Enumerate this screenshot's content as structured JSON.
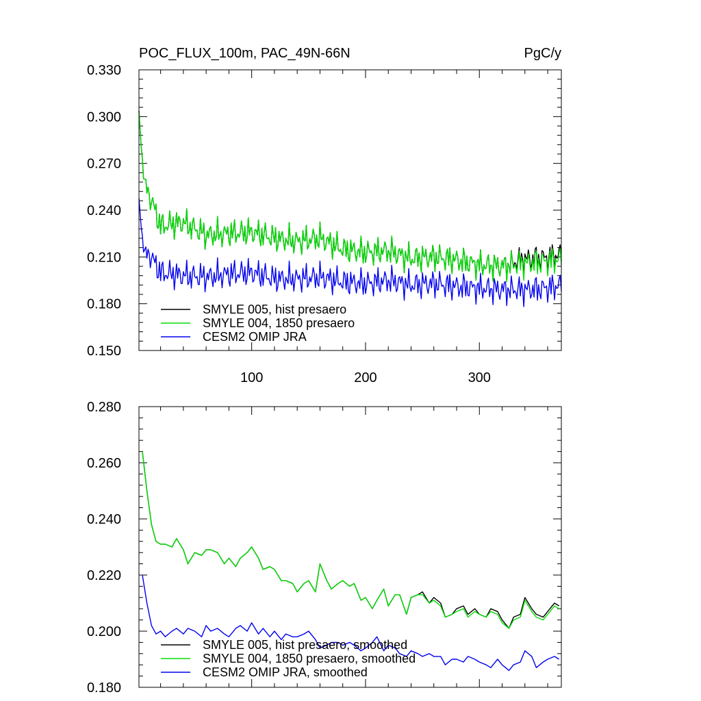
{
  "chart_data": [
    {
      "type": "line",
      "title": "POC_FLUX_100m, PAC_49N-66N",
      "units": "PgC/y",
      "xlim": [
        1,
        372
      ],
      "ylim": [
        0.15,
        0.33
      ],
      "xticks": [
        100,
        200,
        300
      ],
      "xtick_labels": [
        "100",
        "200",
        "300"
      ],
      "yticks": [
        0.15,
        0.18,
        0.21,
        0.24,
        0.27,
        0.3,
        0.33
      ],
      "ytick_labels": [
        "0.150",
        "0.180",
        "0.210",
        "0.240",
        "0.270",
        "0.300",
        "0.330"
      ],
      "legend_position": "bottom-left",
      "series": [
        {
          "name": "SMYLE 005, hist presaero",
          "color": "#000000",
          "x": [
            1,
            5,
            10,
            20,
            40,
            60,
            80,
            100,
            120,
            140,
            160,
            180,
            200,
            220,
            240,
            260,
            280,
            300,
            320,
            340,
            360,
            372
          ],
          "values": [
            0.302,
            0.262,
            0.25,
            0.23,
            0.232,
            0.224,
            0.225,
            0.226,
            0.222,
            0.22,
            0.222,
            0.215,
            0.213,
            0.214,
            0.209,
            0.21,
            0.208,
            0.205,
            0.204,
            0.207,
            0.208,
            0.21
          ]
        },
        {
          "name": "SMYLE 004, 1850 presaero",
          "color": "#00dd00",
          "x": [
            1,
            5,
            10,
            20,
            40,
            60,
            80,
            100,
            120,
            140,
            160,
            180,
            200,
            220,
            240,
            260,
            280,
            300,
            320,
            340,
            360,
            372
          ],
          "values": [
            0.302,
            0.262,
            0.25,
            0.23,
            0.232,
            0.224,
            0.225,
            0.226,
            0.222,
            0.22,
            0.222,
            0.215,
            0.213,
            0.214,
            0.209,
            0.21,
            0.208,
            0.205,
            0.204,
            0.206,
            0.207,
            0.209
          ]
        },
        {
          "name": "CESM2 OMIP JRA",
          "color": "#0000ee",
          "x": [
            1,
            5,
            10,
            20,
            40,
            60,
            80,
            100,
            120,
            140,
            160,
            180,
            200,
            220,
            240,
            260,
            280,
            300,
            320,
            340,
            360,
            372
          ],
          "values": [
            0.246,
            0.215,
            0.212,
            0.2,
            0.198,
            0.197,
            0.199,
            0.2,
            0.196,
            0.196,
            0.197,
            0.194,
            0.193,
            0.195,
            0.192,
            0.193,
            0.191,
            0.19,
            0.189,
            0.189,
            0.19,
            0.192
          ]
        }
      ]
    },
    {
      "type": "line",
      "xlim": [
        1,
        372
      ],
      "ylim": [
        0.18,
        0.28
      ],
      "xticks": [
        100,
        200,
        300
      ],
      "yticks": [
        0.18,
        0.2,
        0.22,
        0.24,
        0.26,
        0.28
      ],
      "ytick_labels": [
        "0.180",
        "0.200",
        "0.220",
        "0.240",
        "0.260",
        "0.280"
      ],
      "legend_position": "bottom-left",
      "series": [
        {
          "name": "SMYLE 005, hist presaero, smoothed",
          "color": "#000000",
          "x": [
            4,
            8,
            12,
            16,
            20,
            24,
            30,
            34,
            40,
            44,
            50,
            56,
            60,
            64,
            70,
            76,
            80,
            86,
            90,
            96,
            100,
            106,
            110,
            116,
            120,
            126,
            130,
            136,
            140,
            146,
            150,
            156,
            160,
            166,
            170,
            176,
            180,
            186,
            190,
            196,
            200,
            206,
            210,
            216,
            220,
            226,
            230,
            236,
            240,
            246,
            250,
            256,
            260,
            266,
            270,
            276,
            280,
            286,
            290,
            296,
            300,
            306,
            310,
            316,
            320,
            326,
            330,
            336,
            340,
            346,
            350,
            356,
            360,
            366,
            370
          ],
          "values": [
            0.264,
            0.25,
            0.238,
            0.232,
            0.231,
            0.231,
            0.23,
            0.233,
            0.229,
            0.224,
            0.228,
            0.227,
            0.229,
            0.229,
            0.228,
            0.224,
            0.226,
            0.223,
            0.226,
            0.228,
            0.23,
            0.226,
            0.222,
            0.223,
            0.222,
            0.218,
            0.218,
            0.217,
            0.214,
            0.217,
            0.218,
            0.214,
            0.224,
            0.218,
            0.215,
            0.217,
            0.218,
            0.216,
            0.217,
            0.211,
            0.212,
            0.208,
            0.211,
            0.215,
            0.209,
            0.213,
            0.213,
            0.206,
            0.212,
            0.213,
            0.214,
            0.21,
            0.212,
            0.21,
            0.205,
            0.206,
            0.208,
            0.209,
            0.206,
            0.208,
            0.206,
            0.205,
            0.208,
            0.207,
            0.204,
            0.201,
            0.205,
            0.206,
            0.212,
            0.208,
            0.206,
            0.205,
            0.207,
            0.21,
            0.209
          ]
        },
        {
          "name": "SMYLE 004, 1850 presaero, smoothed",
          "color": "#00dd00",
          "x": [
            4,
            8,
            12,
            16,
            20,
            24,
            30,
            34,
            40,
            44,
            50,
            56,
            60,
            64,
            70,
            76,
            80,
            86,
            90,
            96,
            100,
            106,
            110,
            116,
            120,
            126,
            130,
            136,
            140,
            146,
            150,
            156,
            160,
            166,
            170,
            176,
            180,
            186,
            190,
            196,
            200,
            206,
            210,
            216,
            220,
            226,
            230,
            236,
            240,
            246,
            250,
            256,
            260,
            266,
            270,
            276,
            280,
            286,
            290,
            296,
            300,
            306,
            310,
            316,
            320,
            326,
            330,
            336,
            340,
            346,
            350,
            356,
            360,
            366,
            370
          ],
          "values": [
            0.264,
            0.25,
            0.238,
            0.232,
            0.231,
            0.231,
            0.23,
            0.233,
            0.229,
            0.224,
            0.228,
            0.227,
            0.229,
            0.229,
            0.228,
            0.224,
            0.226,
            0.223,
            0.226,
            0.228,
            0.23,
            0.226,
            0.222,
            0.223,
            0.222,
            0.218,
            0.218,
            0.217,
            0.214,
            0.217,
            0.218,
            0.214,
            0.224,
            0.218,
            0.215,
            0.217,
            0.218,
            0.216,
            0.217,
            0.211,
            0.212,
            0.208,
            0.211,
            0.215,
            0.209,
            0.213,
            0.213,
            0.206,
            0.212,
            0.213,
            0.213,
            0.21,
            0.211,
            0.209,
            0.205,
            0.206,
            0.207,
            0.208,
            0.205,
            0.207,
            0.206,
            0.205,
            0.207,
            0.206,
            0.203,
            0.201,
            0.204,
            0.205,
            0.211,
            0.207,
            0.205,
            0.204,
            0.206,
            0.209,
            0.208
          ]
        },
        {
          "name": "CESM2 OMIP JRA, smoothed",
          "color": "#0000ee",
          "x": [
            4,
            8,
            12,
            16,
            20,
            24,
            30,
            34,
            40,
            44,
            50,
            56,
            60,
            64,
            70,
            76,
            80,
            86,
            90,
            96,
            100,
            106,
            110,
            116,
            120,
            126,
            130,
            136,
            140,
            146,
            150,
            156,
            160,
            166,
            170,
            176,
            180,
            186,
            190,
            196,
            200,
            206,
            210,
            216,
            220,
            226,
            230,
            236,
            240,
            246,
            250,
            256,
            260,
            266,
            270,
            276,
            280,
            286,
            290,
            296,
            300,
            306,
            310,
            316,
            320,
            326,
            330,
            336,
            340,
            346,
            350,
            356,
            360,
            366,
            370
          ],
          "values": [
            0.22,
            0.21,
            0.202,
            0.199,
            0.2,
            0.198,
            0.2,
            0.201,
            0.199,
            0.201,
            0.2,
            0.198,
            0.202,
            0.2,
            0.201,
            0.199,
            0.198,
            0.201,
            0.202,
            0.2,
            0.203,
            0.199,
            0.201,
            0.198,
            0.2,
            0.197,
            0.199,
            0.198,
            0.198,
            0.199,
            0.2,
            0.197,
            0.194,
            0.195,
            0.196,
            0.196,
            0.195,
            0.196,
            0.195,
            0.193,
            0.194,
            0.196,
            0.198,
            0.193,
            0.195,
            0.194,
            0.192,
            0.191,
            0.193,
            0.192,
            0.191,
            0.192,
            0.191,
            0.191,
            0.188,
            0.19,
            0.19,
            0.189,
            0.191,
            0.19,
            0.189,
            0.188,
            0.187,
            0.19,
            0.188,
            0.186,
            0.188,
            0.189,
            0.193,
            0.191,
            0.187,
            0.189,
            0.19,
            0.191,
            0.19
          ]
        }
      ]
    }
  ]
}
